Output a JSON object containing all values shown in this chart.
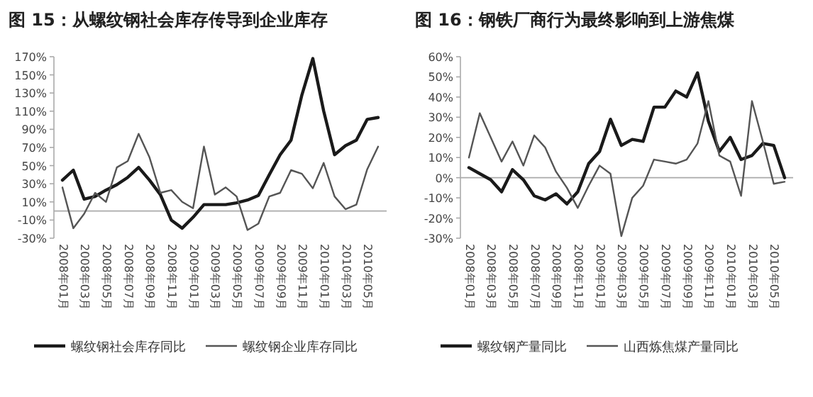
{
  "chart_data": [
    {
      "type": "line",
      "title": "图 15：从螺纹钢社会库存传导到企业库存",
      "categories": [
        "2008年01月",
        null,
        "2008年03月",
        null,
        "2008年05月",
        null,
        "2008年07月",
        null,
        "2008年09月",
        null,
        "2008年11月",
        null,
        "2009年01月",
        null,
        "2009年03月",
        null,
        "2009年05月",
        null,
        "2009年07月",
        null,
        "2009年09月",
        null,
        "2009年11月",
        null,
        "2010年01月",
        null,
        "2010年03月",
        null,
        "2010年05月",
        null
      ],
      "series": [
        {
          "name": "螺纹钢社会库存同比",
          "color": "#1a1a1a",
          "values": [
            34,
            45,
            13,
            16,
            23,
            29,
            37,
            48,
            34,
            18,
            -10,
            -19,
            -7,
            7,
            7,
            7,
            9,
            12,
            17,
            40,
            62,
            78,
            128,
            168,
            110,
            62,
            72,
            78,
            101,
            103
          ]
        },
        {
          "name": "螺纹钢企业库存同比",
          "color": "#555555",
          "values": [
            26,
            -19,
            -3,
            20,
            10,
            48,
            55,
            85,
            59,
            20,
            23,
            10,
            3,
            71,
            18,
            26,
            16,
            -21,
            -14,
            16,
            20,
            45,
            41,
            25,
            53,
            16,
            2,
            7,
            46,
            71
          ]
        }
      ],
      "ylim": [
        -30,
        170
      ],
      "yticks": [
        {
          "value": -30,
          "label": "-30%"
        },
        {
          "value": -10,
          "label": "-10%"
        },
        {
          "value": 10,
          "label": "10%"
        },
        {
          "value": 30,
          "label": "30%"
        },
        {
          "value": 50,
          "label": "50%"
        },
        {
          "value": 70,
          "label": "70%"
        },
        {
          "value": 90,
          "label": "90%"
        },
        {
          "value": 110,
          "label": "110%"
        },
        {
          "value": 130,
          "label": "130%"
        },
        {
          "value": 150,
          "label": "150%"
        },
        {
          "value": 170,
          "label": "170%"
        }
      ],
      "legend": "bottom"
    },
    {
      "type": "line",
      "title": "图 16：钢铁厂商行为最终影响到上游焦煤",
      "categories": [
        "2008年01月",
        null,
        "2008年03月",
        null,
        "2008年05月",
        null,
        "2008年07月",
        null,
        "2008年09月",
        null,
        "2008年11月",
        null,
        "2009年01月",
        null,
        "2009年03月",
        null,
        "2009年05月",
        null,
        "2009年07月",
        null,
        "2009年09月",
        null,
        "2009年11月",
        null,
        "2010年01月",
        null,
        "2010年03月",
        null,
        "2010年05月",
        null
      ],
      "series": [
        {
          "name": "螺纹钢产量同比",
          "color": "#1a1a1a",
          "values": [
            5,
            2,
            -1,
            -7,
            4,
            -1,
            -9,
            -11,
            -8,
            -13,
            -7,
            7,
            13,
            29,
            16,
            19,
            18,
            35,
            35,
            43,
            40,
            52,
            28,
            13,
            20,
            9,
            11,
            17,
            16,
            0
          ]
        },
        {
          "name": "山西炼焦煤产量同比",
          "color": "#555555",
          "values": [
            10,
            32,
            20,
            8,
            18,
            6,
            21,
            15,
            3,
            -5,
            -15,
            -4,
            6,
            2,
            -29,
            -10,
            -4,
            9,
            8,
            7,
            9,
            17,
            38,
            11,
            8,
            -9,
            38,
            18,
            -3,
            -2
          ]
        }
      ],
      "ylim": [
        -30,
        60
      ],
      "yticks": [
        {
          "value": -30,
          "label": "-30%"
        },
        {
          "value": -20,
          "label": "-20%"
        },
        {
          "value": -10,
          "label": "-10%"
        },
        {
          "value": 0,
          "label": "0%"
        },
        {
          "value": 10,
          "label": "10%"
        },
        {
          "value": 20,
          "label": "20%"
        },
        {
          "value": 30,
          "label": "30%"
        },
        {
          "value": 40,
          "label": "40%"
        },
        {
          "value": 50,
          "label": "50%"
        },
        {
          "value": 60,
          "label": "60%"
        }
      ],
      "legend": "bottom"
    }
  ]
}
